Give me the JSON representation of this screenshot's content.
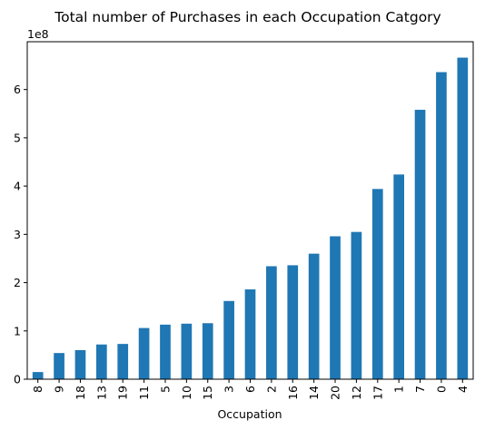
{
  "chart_data": {
    "type": "bar",
    "title": "Total number of Purchases in each Occupation Catgory",
    "xlabel": "Occupation",
    "ylabel": "",
    "y_offset_text": "1e8",
    "categories": [
      "8",
      "9",
      "18",
      "13",
      "19",
      "11",
      "5",
      "10",
      "15",
      "3",
      "6",
      "2",
      "16",
      "14",
      "20",
      "12",
      "17",
      "1",
      "7",
      "0",
      "4"
    ],
    "values": [
      14800000,
      54200000,
      60200000,
      71900000,
      73000000,
      106000000,
      113000000,
      115000000,
      116000000,
      162000000,
      186000000,
      234000000,
      236000000,
      260000000,
      296000000,
      305000000,
      394000000,
      424000000,
      558000000,
      636000000,
      666000000
    ],
    "ylim": [
      0,
      699000000
    ],
    "yticks": [
      0,
      100000000,
      200000000,
      300000000,
      400000000,
      500000000,
      600000000
    ],
    "ytick_labels": [
      "0",
      "1",
      "2",
      "3",
      "4",
      "5",
      "6"
    ],
    "bar_color": "#1f77b4",
    "grid": false,
    "legend": "none"
  }
}
